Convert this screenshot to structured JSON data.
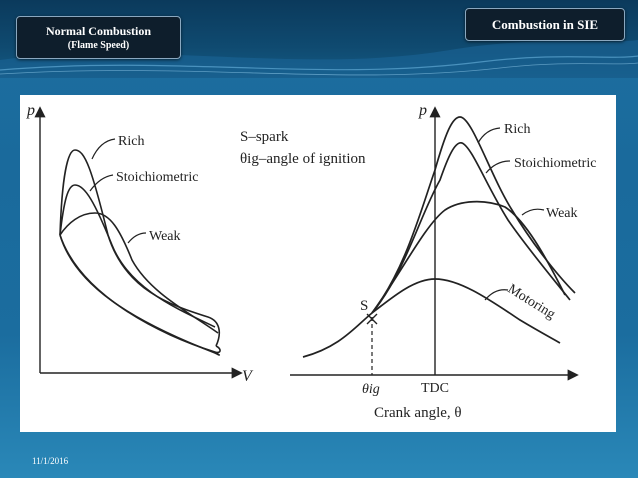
{
  "slide": {
    "title_main": "Normal Combustion",
    "title_sub": "(Flame Speed)",
    "section_label": "Combustion in SIE",
    "date": "11/1/2016"
  },
  "colors": {
    "background": "#1b6d9f",
    "header": "#0f4a70",
    "title_box": "#0e1e2c",
    "figure_bg": "#ffffff",
    "curve": "#222222"
  },
  "figure": {
    "legend_spark": "S–spark",
    "legend_theta": "θig–angle of ignition",
    "pv_diagram": {
      "y_axis_label": "p",
      "x_axis_label": "V",
      "curve_labels": [
        "Rich",
        "Stoichiometric",
        "Weak"
      ]
    },
    "pressure_crank_diagram": {
      "y_axis_label": "p",
      "x_axis_label": "Crank angle, θ",
      "tick_ignition": "θig",
      "tick_tdc": "TDC",
      "spark_point_label": "S",
      "curve_labels": [
        "Rich",
        "Stoichiometric",
        "Weak",
        "Motoring"
      ]
    }
  }
}
